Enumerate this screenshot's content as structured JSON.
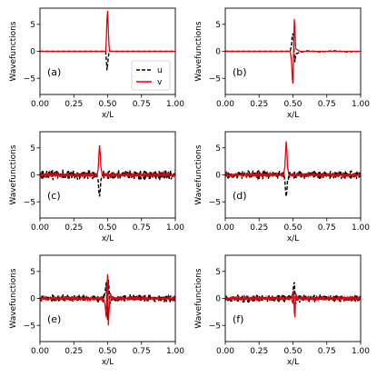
{
  "chart_data": [
    {
      "type": "line",
      "panel_label": "(a)",
      "xlabel": "x/L",
      "ylabel": "Wavefunctions",
      "xlim": [
        0,
        1
      ],
      "ylim": [
        -8,
        8
      ],
      "xticks": [
        "0.00",
        "0.25",
        "0.50",
        "0.75",
        "1.00"
      ],
      "yticks": [
        "-5",
        "0",
        "5"
      ],
      "legend": {
        "placement": "lower-right",
        "entries": [
          "u",
          "v"
        ]
      },
      "series": [
        {
          "name": "u",
          "color": "#000000",
          "style": "dashed",
          "x": [
            0,
            0.47,
            0.485,
            0.49,
            0.495,
            0.5,
            0.505,
            0.51,
            0.515,
            0.53,
            1
          ],
          "y": [
            0,
            0,
            0,
            -1.5,
            -3.5,
            -2.5,
            -1,
            -0.3,
            0,
            0,
            0
          ]
        },
        {
          "name": "v",
          "color": "#e8000b",
          "style": "solid",
          "x": [
            0,
            0.47,
            0.485,
            0.49,
            0.495,
            0.5,
            0.505,
            0.51,
            0.515,
            0.53,
            1
          ],
          "y": [
            0,
            0,
            0,
            2,
            6,
            7.5,
            4,
            1,
            0,
            0,
            0
          ]
        }
      ]
    },
    {
      "type": "line",
      "panel_label": "(b)",
      "xlabel": "x/L",
      "ylabel": "Wavefunctions",
      "xlim": [
        0,
        1
      ],
      "ylim": [
        -8,
        8
      ],
      "xticks": [
        "0.00",
        "0.25",
        "0.50",
        "0.75",
        "1.00"
      ],
      "yticks": [
        "-5",
        "0",
        "5"
      ],
      "series": [
        {
          "name": "u",
          "color": "#000000",
          "style": "dashed",
          "x": [
            0,
            0.45,
            0.48,
            0.49,
            0.495,
            0.5,
            0.505,
            0.51,
            0.515,
            0.52,
            0.55,
            0.6,
            0.7,
            0.8,
            0.9,
            1
          ],
          "y": [
            0,
            0,
            0,
            1.5,
            3,
            3.3,
            2,
            -1,
            -2,
            -0.5,
            -0.2,
            0.1,
            -0.1,
            0.1,
            -0.1,
            0
          ]
        },
        {
          "name": "v",
          "color": "#e8000b",
          "style": "solid",
          "x": [
            0,
            0.45,
            0.48,
            0.49,
            0.495,
            0.5,
            0.505,
            0.51,
            0.515,
            0.52,
            0.55,
            0.6,
            1
          ],
          "y": [
            0,
            0,
            0,
            -2,
            -5,
            -6,
            0,
            6,
            4,
            0.5,
            0,
            0,
            0
          ]
        }
      ]
    },
    {
      "type": "line",
      "panel_label": "(c)",
      "xlabel": "x/L",
      "ylabel": "Wavefunctions",
      "xlim": [
        0,
        1
      ],
      "ylim": [
        -8,
        8
      ],
      "xticks": [
        "0.00",
        "0.25",
        "0.50",
        "0.75",
        "1.00"
      ],
      "yticks": [
        "-5",
        "0",
        "5"
      ],
      "noise": {
        "u_amplitude": 1.0,
        "v_amplitude": 0.3
      },
      "series": [
        {
          "name": "u",
          "color": "#000000",
          "style": "dashed",
          "x": [
            0,
            0.42,
            0.43,
            0.435,
            0.44,
            0.445,
            0.45,
            0.46,
            1
          ],
          "y": [
            0,
            0,
            -1,
            -3,
            -4,
            -3,
            -1,
            0,
            0
          ]
        },
        {
          "name": "v",
          "color": "#e8000b",
          "style": "solid",
          "x": [
            0,
            0.42,
            0.43,
            0.435,
            0.44,
            0.445,
            0.45,
            0.46,
            1
          ],
          "y": [
            0,
            0,
            1,
            3.5,
            5.5,
            4,
            1.5,
            0,
            0
          ]
        }
      ]
    },
    {
      "type": "line",
      "panel_label": "(d)",
      "xlabel": "x/L",
      "ylabel": "Wavefunctions",
      "xlim": [
        0,
        1
      ],
      "ylim": [
        -8,
        8
      ],
      "xticks": [
        "0.00",
        "0.25",
        "0.50",
        "0.75",
        "1.00"
      ],
      "yticks": [
        "-5",
        "0",
        "5"
      ],
      "noise": {
        "u_amplitude": 0.9,
        "v_amplitude": 0.3
      },
      "series": [
        {
          "name": "u",
          "color": "#000000",
          "style": "dashed",
          "x": [
            0,
            0.43,
            0.44,
            0.445,
            0.45,
            0.455,
            0.46,
            0.47,
            1
          ],
          "y": [
            0,
            0,
            -1,
            -3,
            -4,
            -3,
            -1,
            0,
            0
          ]
        },
        {
          "name": "v",
          "color": "#e8000b",
          "style": "solid",
          "x": [
            0,
            0.43,
            0.44,
            0.445,
            0.45,
            0.455,
            0.46,
            0.47,
            1
          ],
          "y": [
            0,
            0,
            1.5,
            4,
            6.2,
            4.5,
            1.5,
            0,
            0
          ]
        }
      ]
    },
    {
      "type": "line",
      "panel_label": "(e)",
      "xlabel": "x/L",
      "ylabel": "Wavefunctions",
      "xlim": [
        0,
        1
      ],
      "ylim": [
        -8,
        8
      ],
      "xticks": [
        "0.00",
        "0.25",
        "0.50",
        "0.75",
        "1.00"
      ],
      "yticks": [
        "-5",
        "0",
        "5"
      ],
      "noise": {
        "u_amplitude": 0.8,
        "v_amplitude": 0.3
      },
      "series": [
        {
          "name": "u",
          "color": "#000000",
          "style": "dashed",
          "x": [
            0,
            0.47,
            0.48,
            0.49,
            0.495,
            0.5,
            0.505,
            0.51,
            0.52,
            0.53,
            1
          ],
          "y": [
            0,
            0,
            1,
            3,
            -2,
            -4,
            3.5,
            2,
            -1,
            0,
            0
          ]
        },
        {
          "name": "v",
          "color": "#e8000b",
          "style": "solid",
          "x": [
            0,
            0.47,
            0.48,
            0.49,
            0.495,
            0.5,
            0.505,
            0.51,
            0.52,
            0.53,
            1
          ],
          "y": [
            0,
            0,
            -1,
            -3.5,
            2.5,
            4.5,
            -5,
            -2.5,
            1,
            0,
            0
          ]
        }
      ]
    },
    {
      "type": "line",
      "panel_label": "(f)",
      "xlabel": "x/L",
      "ylabel": "Wavefunctions",
      "xlim": [
        0,
        1
      ],
      "ylim": [
        -8,
        8
      ],
      "xticks": [
        "0.00",
        "0.25",
        "0.50",
        "0.75",
        "1.00"
      ],
      "yticks": [
        "-5",
        "0",
        "5"
      ],
      "noise": {
        "u_amplitude": 0.8,
        "v_amplitude": 0.35
      },
      "series": [
        {
          "name": "u",
          "color": "#000000",
          "style": "dashed",
          "x": [
            0,
            0.49,
            0.5,
            0.505,
            0.51,
            0.515,
            0.52,
            0.53,
            1
          ],
          "y": [
            0,
            0,
            1,
            2.5,
            3,
            1,
            -1,
            0,
            0
          ]
        },
        {
          "name": "v",
          "color": "#e8000b",
          "style": "solid",
          "x": [
            0,
            0.49,
            0.5,
            0.505,
            0.51,
            0.515,
            0.52,
            0.53,
            1
          ],
          "y": [
            0,
            0,
            -1,
            1.5,
            -2.5,
            -3.5,
            1,
            0,
            0
          ]
        }
      ]
    }
  ]
}
